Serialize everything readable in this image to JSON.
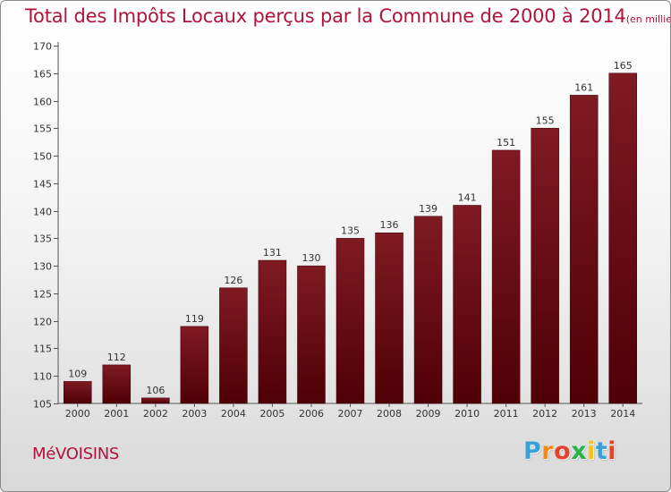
{
  "page": {
    "title": "Total des Impôts Locaux perçus par la Commune de 2000 à 2014",
    "title_unit": "(en milliers d'€)",
    "commune": "MéVOISINS",
    "brand": "Proxiti"
  },
  "colors": {
    "title": "#b3123a",
    "bar_top": "#7f1a22",
    "bar_bottom": "#4f0005",
    "axis": "#555555",
    "logo_letters": [
      "#3aa0d8",
      "#f08a1c",
      "#e8412b",
      "#2bb34a",
      "#f4c21a",
      "#3aa0d8",
      "#e8412b"
    ]
  },
  "chart_data": {
    "type": "bar",
    "categories": [
      "2000",
      "2001",
      "2002",
      "2003",
      "2004",
      "2005",
      "2006",
      "2007",
      "2008",
      "2009",
      "2010",
      "2011",
      "2012",
      "2013",
      "2014"
    ],
    "values": [
      109,
      112,
      106,
      119,
      126,
      131,
      130,
      135,
      136,
      139,
      141,
      151,
      155,
      161,
      165
    ],
    "title": "Total des Impôts Locaux perçus par la Commune de 2000 à 2014",
    "xlabel": "",
    "ylabel": "",
    "ylim": [
      105,
      170
    ],
    "yticks": [
      105,
      110,
      115,
      120,
      125,
      130,
      135,
      140,
      145,
      150,
      155,
      160,
      165,
      170
    ],
    "grid": false,
    "data_labels": true
  }
}
